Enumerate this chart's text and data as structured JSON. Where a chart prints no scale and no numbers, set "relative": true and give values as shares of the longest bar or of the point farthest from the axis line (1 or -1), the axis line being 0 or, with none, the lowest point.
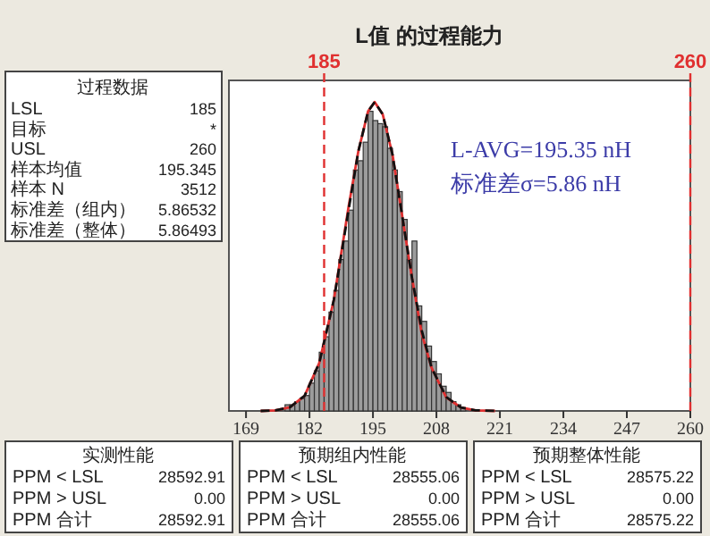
{
  "chart_data": {
    "type": "histogram",
    "title": "L值 的过程能力",
    "relative": true,
    "color": "#9c9c9c",
    "bins": [
      177,
      178,
      179,
      180,
      181,
      182,
      183,
      184,
      185,
      186,
      187,
      188,
      189,
      190,
      191,
      192,
      193,
      194,
      195,
      196,
      197,
      198,
      199,
      200,
      201,
      202,
      203,
      204,
      205,
      206,
      207,
      208,
      209,
      210,
      211,
      212,
      213,
      214
    ],
    "values": [
      0.02,
      0.02,
      0.03,
      0.04,
      0.05,
      0.09,
      0.13,
      0.19,
      0.24,
      0.32,
      0.39,
      0.49,
      0.55,
      0.65,
      0.78,
      0.81,
      0.87,
      0.97,
      0.94,
      0.93,
      0.92,
      0.85,
      0.78,
      0.71,
      0.62,
      0.49,
      0.55,
      0.34,
      0.29,
      0.21,
      0.16,
      0.12,
      0.08,
      0.06,
      0.03,
      0.02,
      0.01
    ],
    "series": [
      {
        "type": "line",
        "color": "#e03030",
        "line_style": "solid",
        "x": [
          172,
          175,
          178,
          181,
          184,
          187,
          190,
          192,
          194,
          195.35,
          197,
          199,
          201,
          203,
          205,
          207,
          210,
          213,
          216,
          220
        ],
        "values": [
          0,
          0.002,
          0.012,
          0.049,
          0.155,
          0.36,
          0.66,
          0.84,
          0.97,
          1.0,
          0.96,
          0.83,
          0.63,
          0.43,
          0.25,
          0.14,
          0.044,
          0.011,
          0.002,
          0
        ]
      },
      {
        "type": "line",
        "color": "#111111",
        "line_style": "dashed",
        "x": [
          172,
          175,
          178,
          181,
          184,
          187,
          190,
          192,
          194,
          195.35,
          197,
          199,
          201,
          203,
          205,
          207,
          210,
          213,
          216,
          220
        ],
        "values": [
          0,
          0.002,
          0.012,
          0.049,
          0.155,
          0.36,
          0.65,
          0.84,
          0.97,
          1.0,
          0.96,
          0.83,
          0.63,
          0.43,
          0.26,
          0.14,
          0.045,
          0.011,
          0.002,
          0
        ]
      }
    ],
    "xlim": [
      165.5,
      260
    ],
    "xticks": [
      169,
      182,
      195,
      208,
      221,
      234,
      247,
      260
    ],
    "ref_lines": [
      {
        "axis": "x",
        "value": 185,
        "label": "185",
        "color": "#e03030",
        "line_style": "dashed"
      },
      {
        "axis": "x",
        "value": 260,
        "label": "260",
        "color": "#e03030",
        "line_style": "dashed"
      }
    ],
    "annotations": [
      "L-AVG=195.35 nH",
      "标准差σ=5.86 nH",
      "过程数据",
      "LSL",
      "185",
      "目标",
      "*",
      "USL",
      "260",
      "样本均值",
      "195.345",
      "样本 N",
      "3512",
      "标准差（组内）",
      "5.86532",
      "标准差（整体）",
      "5.86493",
      "实测性能",
      "PPM < LSL",
      "28592.91",
      "PPM > USL",
      "0.00",
      "PPM 合计",
      "28592.91",
      "预期组内性能",
      "PPM < LSL",
      "28555.06",
      "PPM > USL",
      "0.00",
      "PPM 合计",
      "28555.06",
      "预期整体性能",
      "PPM < LSL",
      "28575.22",
      "PPM > USL",
      "0.00",
      "PPM 合计",
      "28575.22"
    ]
  }
}
